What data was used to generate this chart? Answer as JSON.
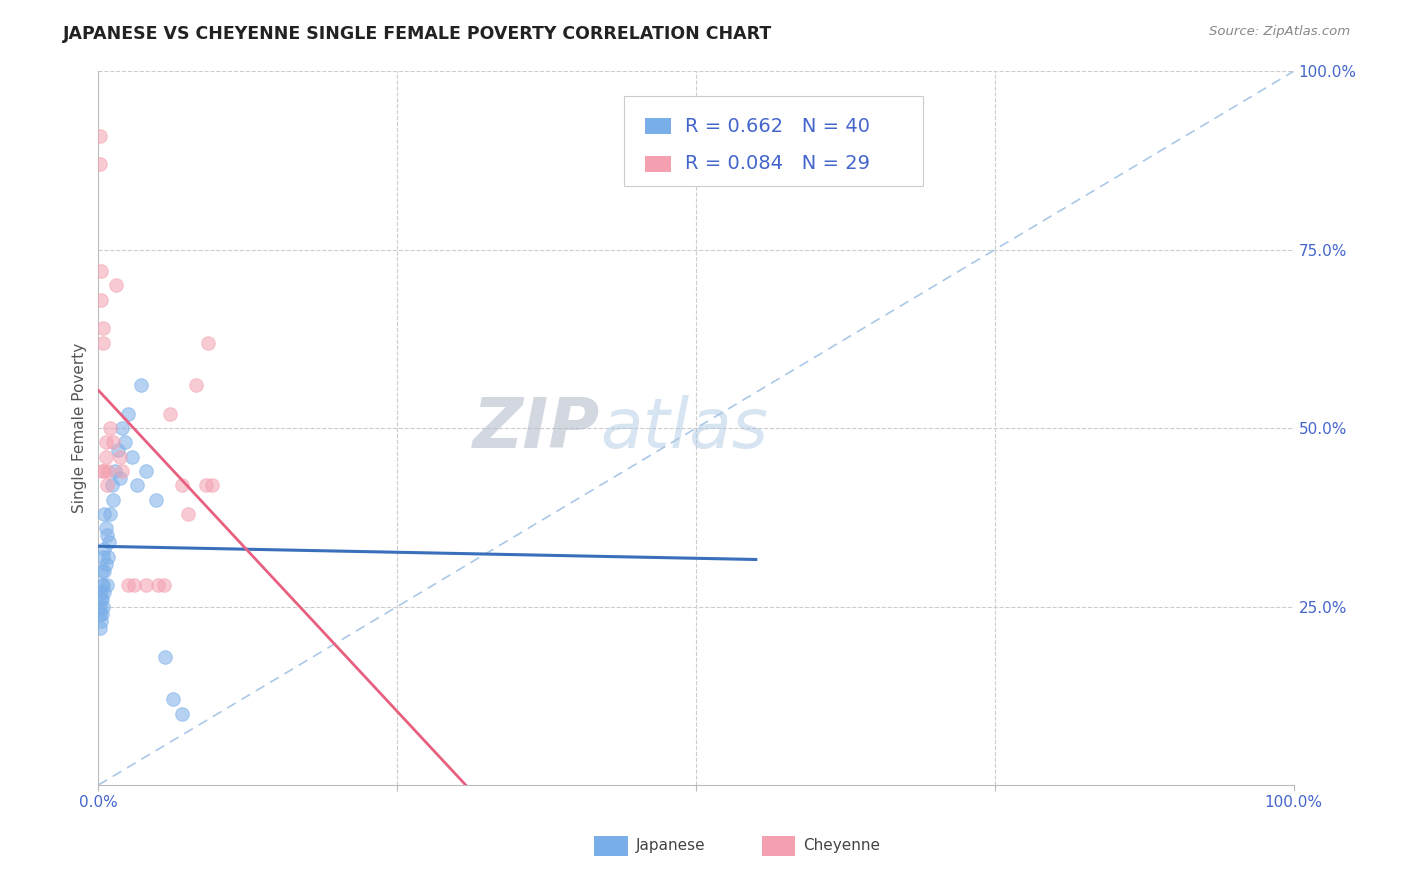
{
  "title": "JAPANESE VS CHEYENNE SINGLE FEMALE POVERTY CORRELATION CHART",
  "source": "Source: ZipAtlas.com",
  "ylabel": "Single Female Poverty",
  "watermark_part1": "ZIP",
  "watermark_part2": "atlas",
  "legend_jp_R": "0.662",
  "legend_jp_N": "40",
  "legend_ch_R": "0.084",
  "legend_ch_N": "29",
  "japanese_color": "#7aaee8",
  "cheyenne_color": "#f4a0b0",
  "jp_line_color": "#3a6fbc",
  "ch_line_color": "#e86080",
  "diag_color": "#aac8e8",
  "grid_color": "#cccccc",
  "axis_tick_color": "#4466cc",
  "title_color": "#222222",
  "source_color": "#888888",
  "background_color": "#ffffff",
  "jp_x": [
    0.001,
    0.001,
    0.001,
    0.002,
    0.002,
    0.002,
    0.003,
    0.003,
    0.003,
    0.003,
    0.004,
    0.004,
    0.004,
    0.005,
    0.005,
    0.005,
    0.005,
    0.006,
    0.006,
    0.007,
    0.007,
    0.008,
    0.009,
    0.01,
    0.011,
    0.012,
    0.014,
    0.016,
    0.018,
    0.02,
    0.022,
    0.025,
    0.028,
    0.032,
    0.036,
    0.04,
    0.048,
    0.056,
    0.062,
    0.07
  ],
  "jp_y": [
    0.22,
    0.24,
    0.25,
    0.23,
    0.26,
    0.27,
    0.24,
    0.26,
    0.28,
    0.3,
    0.25,
    0.28,
    0.32,
    0.27,
    0.3,
    0.33,
    0.38,
    0.31,
    0.36,
    0.28,
    0.35,
    0.32,
    0.34,
    0.38,
    0.42,
    0.4,
    0.44,
    0.47,
    0.43,
    0.5,
    0.48,
    0.52,
    0.46,
    0.42,
    0.56,
    0.44,
    0.4,
    0.18,
    0.12,
    0.1
  ],
  "ch_x": [
    0.001,
    0.001,
    0.002,
    0.002,
    0.003,
    0.004,
    0.004,
    0.005,
    0.006,
    0.006,
    0.007,
    0.008,
    0.01,
    0.012,
    0.015,
    0.018,
    0.02,
    0.025,
    0.03,
    0.04,
    0.05,
    0.055,
    0.06,
    0.07,
    0.075,
    0.082,
    0.09,
    0.092,
    0.095
  ],
  "ch_y": [
    0.87,
    0.91,
    0.72,
    0.68,
    0.44,
    0.62,
    0.64,
    0.44,
    0.46,
    0.48,
    0.42,
    0.44,
    0.5,
    0.48,
    0.7,
    0.46,
    0.44,
    0.28,
    0.28,
    0.28,
    0.28,
    0.28,
    0.52,
    0.42,
    0.38,
    0.56,
    0.42,
    0.62,
    0.42
  ],
  "xlim": [
    0.0,
    1.0
  ],
  "ylim": [
    0.0,
    1.0
  ],
  "xticks": [
    0.0,
    0.25,
    0.5,
    0.75,
    1.0
  ],
  "xticklabels": [
    "0.0%",
    "",
    "",
    "",
    "100.0%"
  ],
  "yticks_right": [
    0.25,
    0.5,
    0.75,
    1.0
  ],
  "yticklabels_right": [
    "25.0%",
    "50.0%",
    "75.0%",
    "100.0%"
  ],
  "grid_yticks": [
    0.25,
    0.5,
    0.75,
    1.0
  ],
  "grid_xticks": [
    0.25,
    0.5,
    0.75,
    1.0
  ]
}
